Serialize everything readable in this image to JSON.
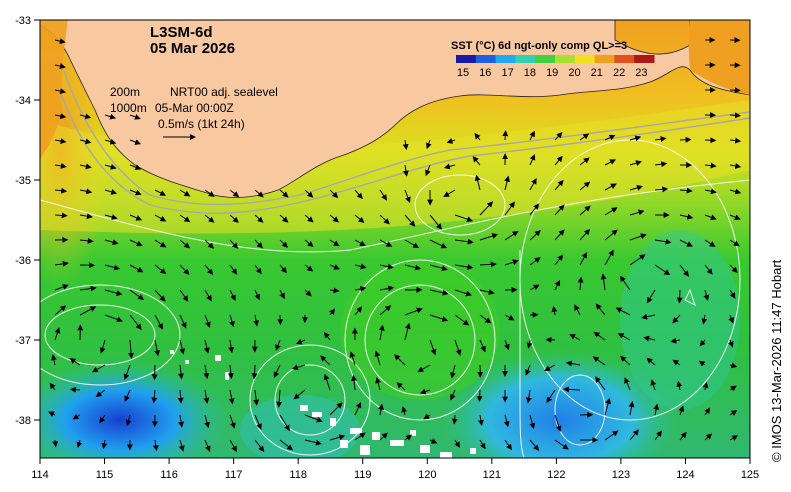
{
  "header": {
    "product": "L3SM-6d",
    "date": "05 Mar 2026"
  },
  "legend": {
    "title": "SST (°C) 6d ngt-only comp QL>=3",
    "ticks": [
      "15",
      "16",
      "17",
      "18",
      "19",
      "20",
      "21",
      "22",
      "23"
    ],
    "colors": [
      "#1a1aa8",
      "#1f5fe0",
      "#20a8f0",
      "#30d0b0",
      "#40d040",
      "#a8e030",
      "#f0e020",
      "#f0a020",
      "#e05020",
      "#b01818"
    ]
  },
  "annotations": {
    "contour_200": "200m",
    "contour_1000": "1000m",
    "source": "NRT00 adj. sealevel",
    "time": "05-Mar 00:00Z",
    "scale": "0.5m/s (1kt 24h)"
  },
  "axes": {
    "x_ticks": [
      "114",
      "115",
      "116",
      "117",
      "118",
      "119",
      "120",
      "121",
      "122",
      "123",
      "124",
      "125"
    ],
    "y_ticks": [
      "-33",
      "-34",
      "-35",
      "-36",
      "-37",
      "-38"
    ]
  },
  "credit": "© IMOS 13-Mar-2026 11:47 Hobart",
  "colors": {
    "land": "#f8c8a0",
    "sst_cold": "#3aa0e8",
    "sst_mid": "#30c830",
    "sst_warm": "#f0a020"
  }
}
